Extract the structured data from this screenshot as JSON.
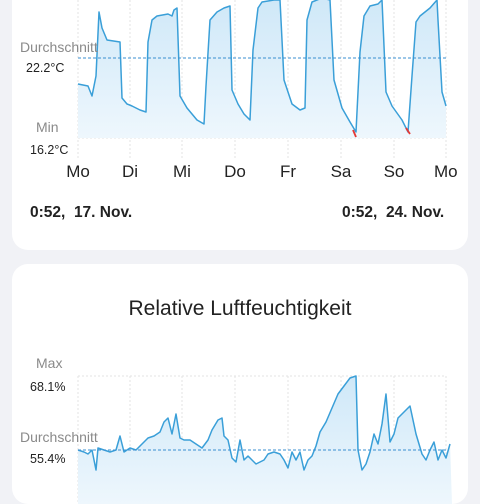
{
  "temperature_card": {
    "avg_label": "Durchschnitt",
    "avg_value": "22.2°C",
    "min_label": "Min",
    "min_value": "16.2°C",
    "days": [
      "Mo",
      "Di",
      "Mi",
      "Do",
      "Fr",
      "Sa",
      "So",
      "Mo"
    ],
    "date_start": "0:52,  17. Nov.",
    "date_end": "0:52,  24. Nov."
  },
  "humidity_card": {
    "title": "Relative Luftfeuchtigkeit",
    "max_label": "Max",
    "max_value": "68.1%",
    "avg_label": "Durchschnitt",
    "avg_value": "55.4%"
  },
  "colors": {
    "line": "#3a9fd8",
    "fill": "#d6ecfa",
    "guide": "#3a8fd0",
    "low": "#e53935"
  }
}
